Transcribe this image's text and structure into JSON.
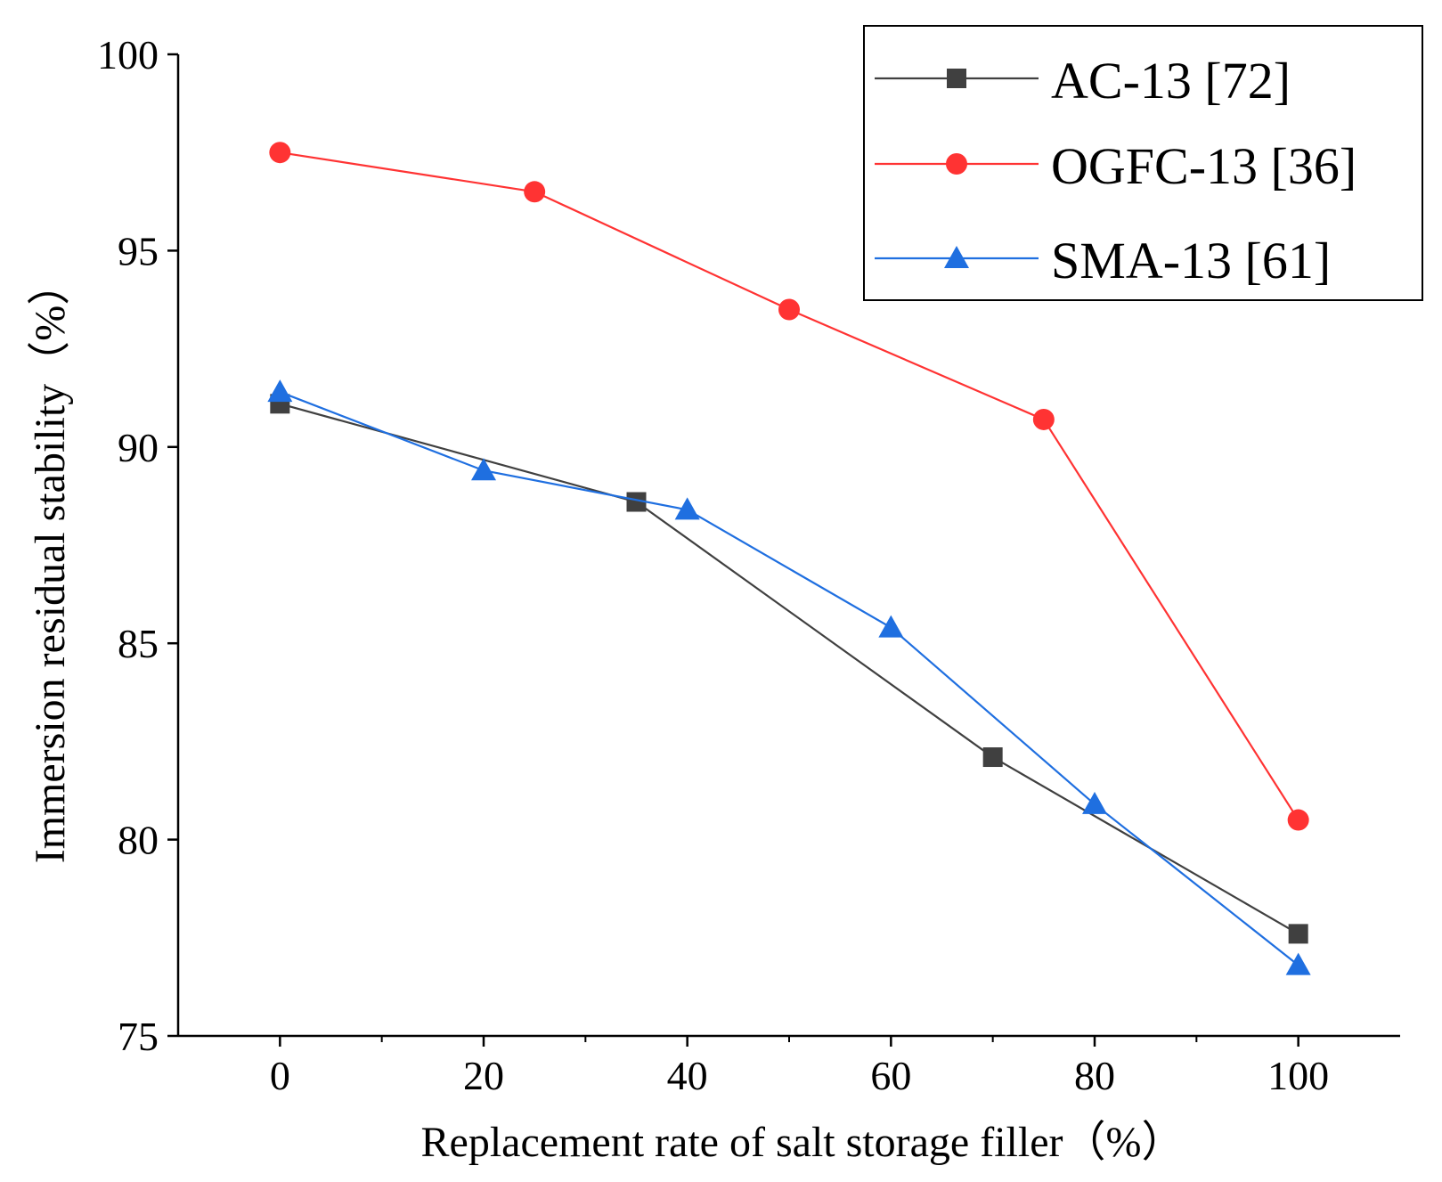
{
  "chart_data": {
    "type": "line",
    "title": "",
    "xlabel": "Replacement rate of salt storage filler（%）",
    "ylabel": "Immersion residual stability（%）",
    "xlim": [
      -10,
      110
    ],
    "ylim": [
      75,
      100
    ],
    "xticks": [
      0,
      20,
      40,
      60,
      80,
      100
    ],
    "yticks": [
      75,
      80,
      85,
      90,
      95,
      100
    ],
    "x_minor_ticks": [
      10,
      30,
      50,
      70,
      90
    ],
    "grid": false,
    "legend_position": "top-right",
    "series": [
      {
        "name": "AC-13 [72]",
        "color": "#404040",
        "marker": "square",
        "x": [
          0,
          35,
          70,
          100
        ],
        "y": [
          91.1,
          88.6,
          82.1,
          77.6
        ]
      },
      {
        "name": "OGFC-13 [36]",
        "color": "#ff3333",
        "marker": "circle",
        "x": [
          0,
          25,
          50,
          75,
          100
        ],
        "y": [
          97.5,
          96.5,
          93.5,
          90.7,
          80.5
        ]
      },
      {
        "name": "SMA-13 [61]",
        "color": "#1f6fe0",
        "marker": "triangle",
        "x": [
          0,
          20,
          40,
          60,
          80,
          100
        ],
        "y": [
          91.4,
          89.4,
          88.4,
          85.4,
          80.9,
          76.8
        ]
      }
    ]
  }
}
